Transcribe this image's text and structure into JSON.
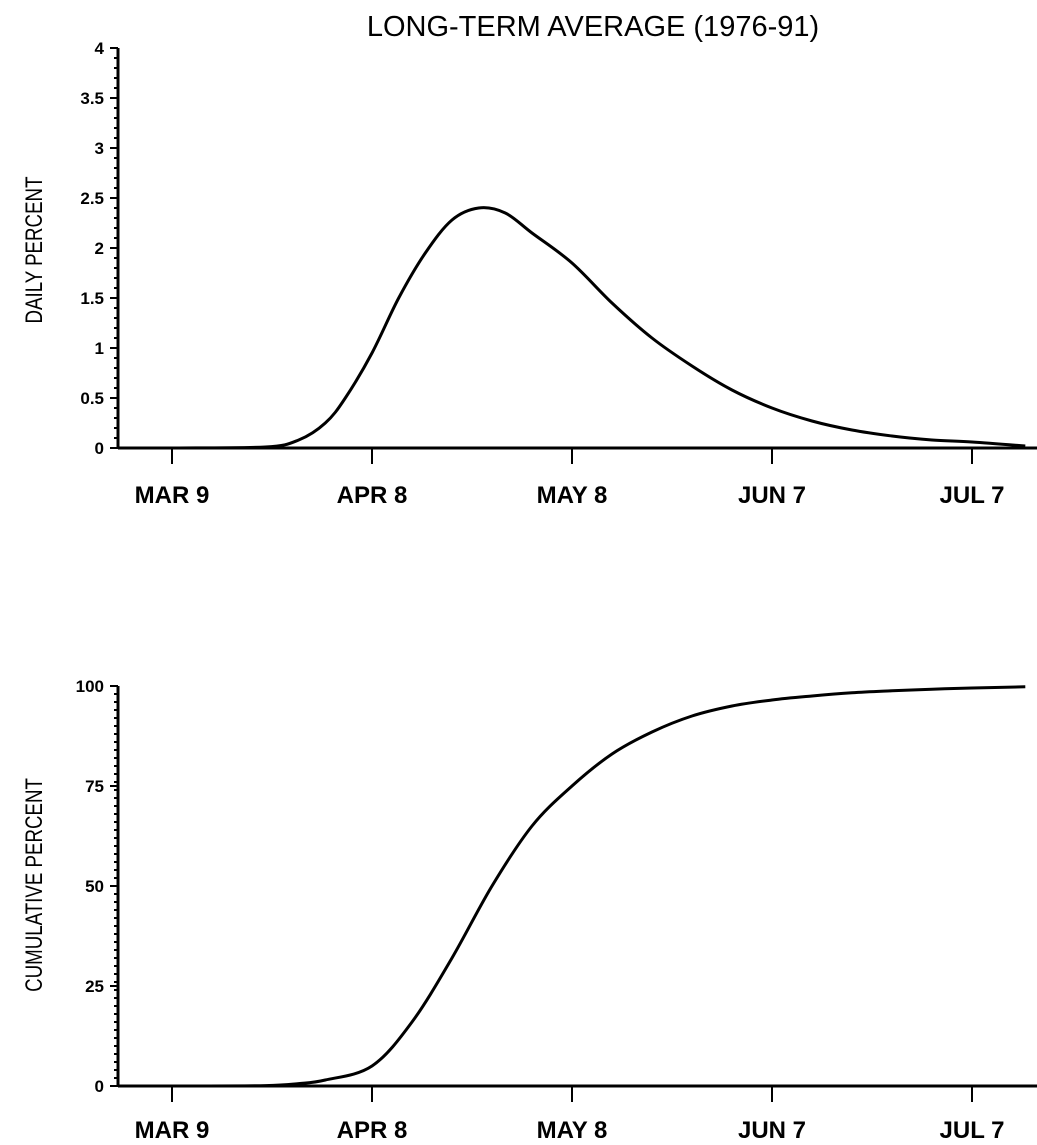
{
  "chart_data": [
    {
      "type": "line",
      "title": "LONG-TERM AVERAGE (1976-91)",
      "ylabel": "DAILY PERCENT",
      "xlabel": "",
      "ylim": [
        0,
        4
      ],
      "yticks": [
        "0",
        "0.5",
        "1",
        "1.5",
        "2",
        "2.5",
        "3",
        "3.5",
        "4"
      ],
      "xticks": [
        "MAR 9",
        "APR 8",
        "MAY 8",
        "JUN 7",
        "JUL 7"
      ],
      "grid": false,
      "series": [
        {
          "x": [
            "Mar 1",
            "Mar 9",
            "Mar 23",
            "Mar 28",
            "Apr 1",
            "Apr 4",
            "Apr 8",
            "Apr 12",
            "Apr 16",
            "Apr 20",
            "Apr 24",
            "Apr 28",
            "May 2",
            "May 8",
            "May 14",
            "May 20",
            "May 26",
            "Jun 1",
            "Jun 7",
            "Jun 13",
            "Jun 19",
            "Jun 25",
            "Jul 1",
            "Jul 7",
            "Jul 15"
          ],
          "values": [
            0,
            0,
            0.01,
            0.08,
            0.25,
            0.5,
            0.95,
            1.5,
            1.95,
            2.28,
            2.4,
            2.35,
            2.15,
            1.85,
            1.45,
            1.1,
            0.82,
            0.58,
            0.4,
            0.27,
            0.18,
            0.12,
            0.08,
            0.06,
            0.02
          ]
        }
      ]
    },
    {
      "type": "line",
      "title": "",
      "ylabel": "CUMULATIVE PERCENT",
      "xlabel": "",
      "ylim": [
        0,
        100
      ],
      "yticks": [
        "0",
        "25",
        "50",
        "75",
        "100"
      ],
      "xticks": [
        "MAR 9",
        "APR 8",
        "MAY 8",
        "JUN 7",
        "JUL 7"
      ],
      "grid": false,
      "series": [
        {
          "x": [
            "Mar 1",
            "Mar 9",
            "Mar 23",
            "Mar 28",
            "Apr 1",
            "Apr 8",
            "Apr 14",
            "Apr 20",
            "Apr 26",
            "May 2",
            "May 8",
            "May 14",
            "May 20",
            "May 26",
            "Jun 1",
            "Jun 7",
            "Jun 13",
            "Jun 19",
            "Jun 25",
            "Jul 1",
            "Jul 7",
            "Jul 15"
          ],
          "values": [
            0,
            0,
            0.1,
            0.6,
            1.5,
            5,
            16,
            32,
            50,
            65,
            75,
            83,
            88.5,
            92.5,
            95,
            96.5,
            97.5,
            98.3,
            98.8,
            99.2,
            99.5,
            99.8
          ]
        }
      ]
    }
  ]
}
